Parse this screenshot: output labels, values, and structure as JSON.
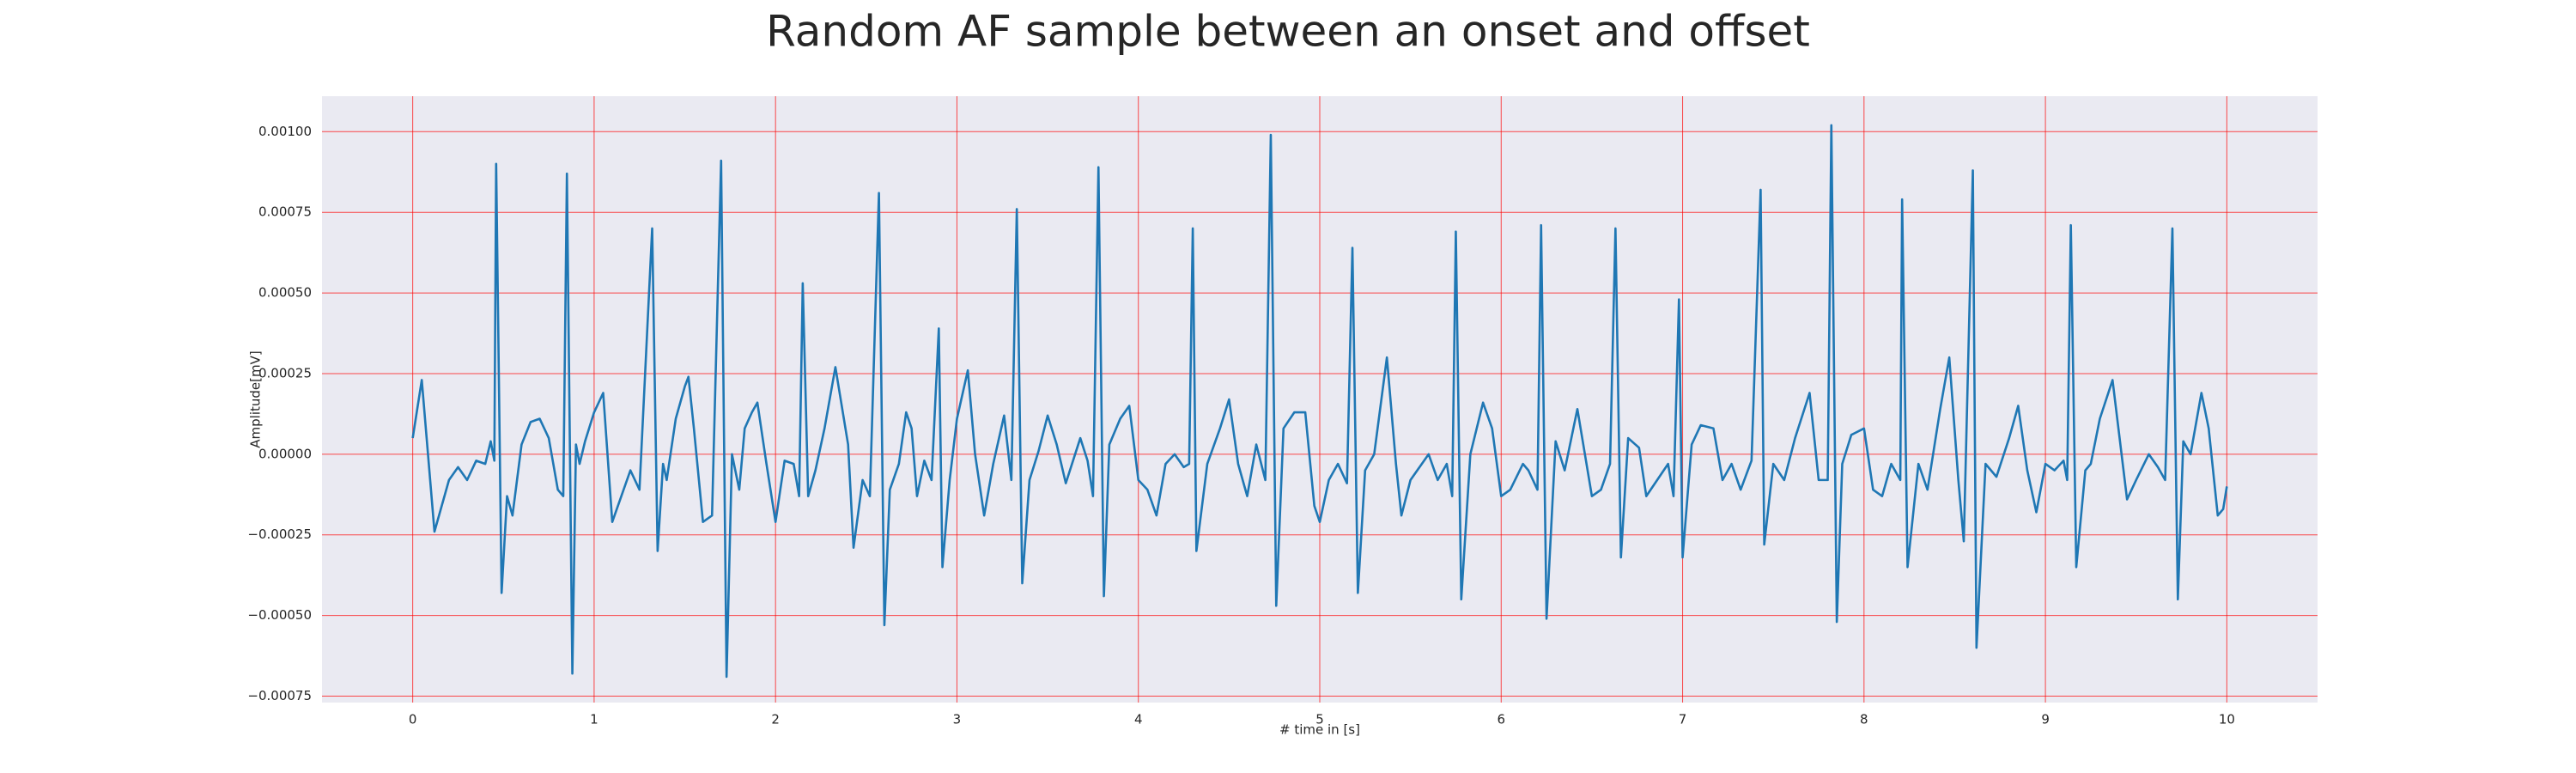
{
  "chart_data": {
    "type": "line",
    "title": "Random AF sample between an onset and offset",
    "xlabel": "# time in [s]",
    "ylabel": "Amplitude[mV]",
    "color": "#1f77b4",
    "grid": true,
    "grid_color": "#ff0000",
    "background": "#eaeaf2",
    "xlim": [
      -0.5,
      10.5
    ],
    "ylim": [
      -0.00077,
      0.00111
    ],
    "xticks": [
      0,
      1,
      2,
      3,
      4,
      5,
      6,
      7,
      8,
      9,
      10
    ],
    "yticks": [
      {
        "value": -0.00075,
        "label": "−0.00075"
      },
      {
        "value": -0.0005,
        "label": "−0.00050"
      },
      {
        "value": -0.00025,
        "label": "−0.00025"
      },
      {
        "value": 0,
        "label": "0.00000"
      },
      {
        "value": 0.00025,
        "label": "0.00025"
      },
      {
        "value": 0.0005,
        "label": "0.00050"
      },
      {
        "value": 0.00075,
        "label": "0.00075"
      },
      {
        "value": 0.001,
        "label": "0.00100"
      }
    ],
    "x": [
      0,
      0.05,
      0.12,
      0.2,
      0.25,
      0.3,
      0.35,
      0.4,
      0.43,
      0.45,
      0.46,
      0.49,
      0.52,
      0.55,
      0.6,
      0.65,
      0.7,
      0.75,
      0.8,
      0.83,
      0.85,
      0.88,
      0.9,
      0.92,
      0.95,
      1.0,
      1.05,
      1.1,
      1.15,
      1.2,
      1.25,
      1.32,
      1.35,
      1.38,
      1.4,
      1.45,
      1.5,
      1.52,
      1.55,
      1.6,
      1.65,
      1.7,
      1.73,
      1.76,
      1.8,
      1.83,
      1.87,
      1.9,
      1.95,
      2.0,
      2.05,
      2.1,
      2.13,
      2.15,
      2.18,
      2.22,
      2.27,
      2.33,
      2.4,
      2.43,
      2.48,
      2.52,
      2.57,
      2.6,
      2.63,
      2.68,
      2.72,
      2.75,
      2.78,
      2.82,
      2.86,
      2.9,
      2.92,
      2.96,
      3.0,
      3.06,
      3.1,
      3.15,
      3.2,
      3.26,
      3.3,
      3.33,
      3.36,
      3.4,
      3.45,
      3.5,
      3.55,
      3.6,
      3.68,
      3.72,
      3.75,
      3.78,
      3.81,
      3.84,
      3.9,
      3.95,
      4.0,
      4.05,
      4.1,
      4.15,
      4.2,
      4.25,
      4.28,
      4.3,
      4.32,
      4.38,
      4.45,
      4.5,
      4.55,
      4.6,
      4.65,
      4.7,
      4.73,
      4.76,
      4.8,
      4.86,
      4.92,
      4.97,
      5.0,
      5.05,
      5.1,
      5.15,
      5.18,
      5.21,
      5.25,
      5.3,
      5.37,
      5.42,
      5.45,
      5.5,
      5.6,
      5.65,
      5.7,
      5.73,
      5.75,
      5.78,
      5.83,
      5.9,
      5.95,
      6.0,
      6.05,
      6.12,
      6.15,
      6.2,
      6.22,
      6.25,
      6.3,
      6.35,
      6.42,
      6.5,
      6.55,
      6.6,
      6.63,
      6.66,
      6.7,
      6.76,
      6.8,
      6.86,
      6.92,
      6.95,
      6.98,
      7.0,
      7.05,
      7.1,
      7.17,
      7.22,
      7.27,
      7.32,
      7.38,
      7.43,
      7.45,
      7.5,
      7.56,
      7.62,
      7.7,
      7.75,
      7.8,
      7.82,
      7.85,
      7.88,
      7.93,
      8.0,
      8.05,
      8.1,
      8.15,
      8.2,
      8.21,
      8.24,
      8.3,
      8.35,
      8.42,
      8.47,
      8.52,
      8.55,
      8.6,
      8.62,
      8.67,
      8.73,
      8.8,
      8.85,
      8.9,
      8.95,
      9.0,
      9.05,
      9.1,
      9.12,
      9.14,
      9.17,
      9.22,
      9.25,
      9.3,
      9.37,
      9.45,
      9.5,
      9.57,
      9.62,
      9.66,
      9.7,
      9.73,
      9.76,
      9.8,
      9.86,
      9.9,
      9.95,
      9.98,
      10.0
    ],
    "values": [
      5e-05,
      0.00023,
      -0.00024,
      -8e-05,
      -4e-05,
      -8e-05,
      -2e-05,
      -3e-05,
      4e-05,
      -2e-05,
      0.0009,
      -0.00043,
      -0.00013,
      -0.00019,
      3e-05,
      0.0001,
      0.00011,
      5e-05,
      -0.00011,
      -0.00013,
      0.00087,
      -0.00068,
      3e-05,
      -3e-05,
      4e-05,
      0.00013,
      0.00019,
      -0.00021,
      -0.00013,
      -5e-05,
      -0.00011,
      0.0007,
      -0.0003,
      -3e-05,
      -8e-05,
      0.00011,
      0.00021,
      0.00024,
      8e-05,
      -0.00021,
      -0.00019,
      0.00091,
      -0.00069,
      0,
      -0.00011,
      8e-05,
      0.00013,
      0.00016,
      -3e-05,
      -0.00021,
      -2e-05,
      -3e-05,
      -0.00013,
      0.00053,
      -0.00013,
      -5e-05,
      8e-05,
      0.00027,
      3e-05,
      -0.00029,
      -8e-05,
      -0.00013,
      0.00081,
      -0.00053,
      -0.00011,
      -3e-05,
      0.00013,
      8e-05,
      -0.00013,
      -2e-05,
      -8e-05,
      0.00039,
      -0.00035,
      -8e-05,
      0.00011,
      0.00026,
      0,
      -0.00019,
      -3e-05,
      0.00012,
      -8e-05,
      0.00076,
      -0.0004,
      -8e-05,
      1e-05,
      0.00012,
      3e-05,
      -9e-05,
      5e-05,
      -2e-05,
      -0.00013,
      0.00089,
      -0.00044,
      3e-05,
      0.00011,
      0.00015,
      -8e-05,
      -0.00011,
      -0.00019,
      -3e-05,
      0,
      -4e-05,
      -3e-05,
      0.0007,
      -0.0003,
      -3e-05,
      8e-05,
      0.00017,
      -3e-05,
      -0.00013,
      3e-05,
      -8e-05,
      0.00099,
      -0.00047,
      8e-05,
      0.00013,
      0.00013,
      -0.00016,
      -0.00021,
      -8e-05,
      -3e-05,
      -9e-05,
      0.00064,
      -0.00043,
      -5e-05,
      0,
      0.0003,
      -3e-05,
      -0.00019,
      -8e-05,
      0,
      -8e-05,
      -3e-05,
      -0.00013,
      0.00069,
      -0.00045,
      0,
      0.00016,
      8e-05,
      -0.00013,
      -0.00011,
      -3e-05,
      -5e-05,
      -0.00011,
      0.00071,
      -0.00051,
      4e-05,
      -5e-05,
      0.00014,
      -0.00013,
      -0.00011,
      -3e-05,
      0.0007,
      -0.00032,
      5e-05,
      2e-05,
      -0.00013,
      -8e-05,
      -3e-05,
      -0.00013,
      0.00048,
      -0.00032,
      3e-05,
      9e-05,
      8e-05,
      -8e-05,
      -3e-05,
      -0.00011,
      -2e-05,
      0.00082,
      -0.00028,
      -3e-05,
      -8e-05,
      5e-05,
      0.00019,
      -8e-05,
      -8e-05,
      0.00102,
      -0.00052,
      -3e-05,
      6e-05,
      8e-05,
      -0.00011,
      -0.00013,
      -3e-05,
      -8e-05,
      0.00079,
      -0.00035,
      -3e-05,
      -0.00011,
      0.00014,
      0.0003,
      -8e-05,
      -0.00027,
      0.00088,
      -0.0006,
      -3e-05,
      -7e-05,
      5e-05,
      0.00015,
      -5e-05,
      -0.00018,
      -3e-05,
      -5e-05,
      -2e-05,
      -8e-05,
      0.00071,
      -0.00035,
      -5e-05,
      -3e-05,
      0.00011,
      0.00023,
      -0.00014,
      -8e-05,
      0,
      -4e-05,
      -8e-05,
      0.0007,
      -0.00045,
      4e-05,
      0,
      0.00019,
      8e-05,
      -0.00019,
      -0.00017,
      -0.0001
    ]
  }
}
